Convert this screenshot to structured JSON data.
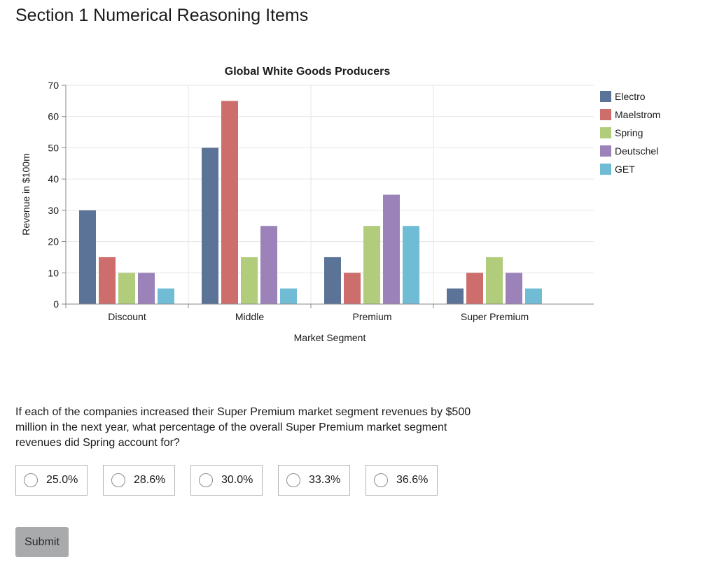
{
  "page": {
    "title": "Section 1 Numerical Reasoning Items"
  },
  "chart_data": {
    "type": "bar",
    "title": "Global White Goods Producers",
    "xlabel": "Market Segment",
    "ylabel": "Revenue in $100m",
    "ylim": [
      0,
      70
    ],
    "yticks": [
      0,
      10,
      20,
      30,
      40,
      50,
      60,
      70
    ],
    "grid": true,
    "legend_position": "top-right",
    "categories": [
      "Discount",
      "Middle",
      "Premium",
      "Super Premium"
    ],
    "series": [
      {
        "name": "Electro",
        "color": "#5b7396",
        "values": [
          30,
          50,
          15,
          5
        ]
      },
      {
        "name": "Maelstrom",
        "color": "#cd6e6c",
        "values": [
          15,
          65,
          10,
          10
        ]
      },
      {
        "name": "Spring",
        "color": "#b1cd7b",
        "values": [
          10,
          15,
          25,
          15
        ]
      },
      {
        "name": "Deutschel",
        "color": "#9b83b9",
        "values": [
          10,
          25,
          35,
          10
        ]
      },
      {
        "name": "GET",
        "color": "#70bcd4",
        "values": [
          5,
          5,
          25,
          5
        ]
      }
    ]
  },
  "question": {
    "text": "If each of the companies increased their Super Premium market segment revenues by $500 million in the next year, what percentage of the overall Super Premium market segment revenues did Spring account for?"
  },
  "options": [
    {
      "label": "25.0%"
    },
    {
      "label": "28.6%"
    },
    {
      "label": "30.0%"
    },
    {
      "label": "33.3%"
    },
    {
      "label": "36.6%"
    }
  ],
  "submit": {
    "label": "Submit"
  }
}
